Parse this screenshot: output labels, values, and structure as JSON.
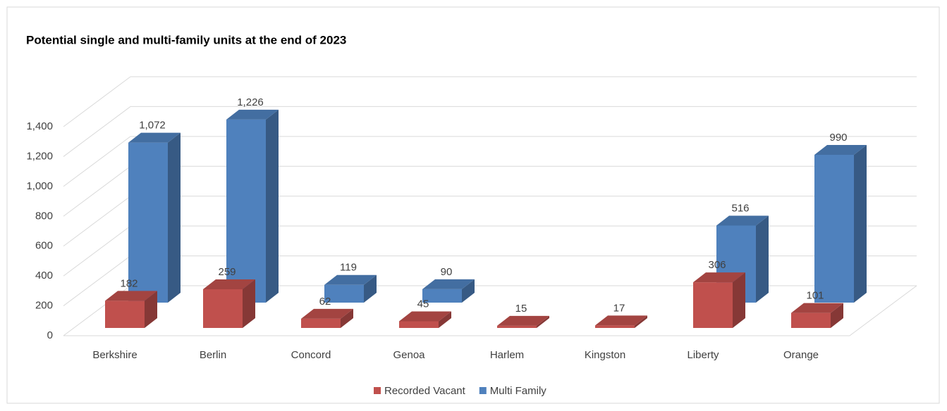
{
  "chart_data": {
    "type": "bar3d",
    "title": "Potential single and multi-family units at the end of 2023",
    "categories": [
      "Berkshire",
      "Berlin",
      "Concord",
      "Genoa",
      "Harlem",
      "Kingston",
      "Liberty",
      "Orange"
    ],
    "series": [
      {
        "name": "Recorded Vacant",
        "color": "#c0504d",
        "values": [
          182,
          259,
          62,
          45,
          15,
          17,
          306,
          101
        ]
      },
      {
        "name": "Multi Family",
        "color": "#4f81bd",
        "values": [
          1072,
          1226,
          119,
          90,
          null,
          null,
          516,
          990
        ],
        "value_labels": [
          "1,072",
          "1,226",
          "119",
          "90",
          null,
          null,
          "516",
          "990"
        ]
      }
    ],
    "ylim": [
      0,
      1400
    ],
    "yticks": [
      0,
      200,
      400,
      600,
      800,
      {
        "value": 1000,
        "label": "1,000"
      },
      {
        "value": 1200,
        "label": "1,200"
      },
      {
        "value": 1400,
        "label": "1,400"
      }
    ],
    "grid": true,
    "legend": "bottom"
  }
}
